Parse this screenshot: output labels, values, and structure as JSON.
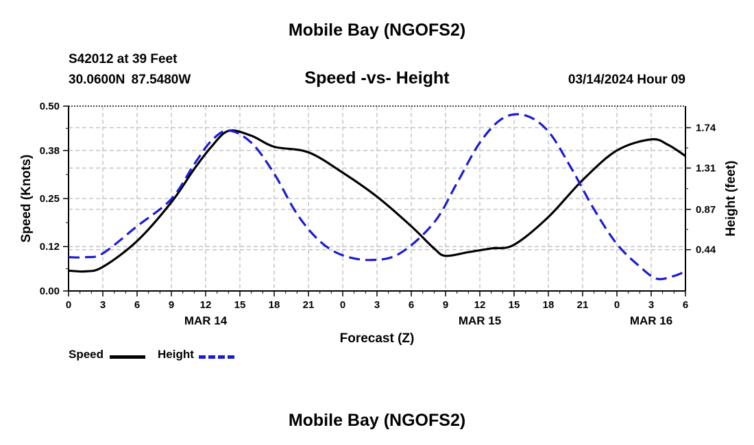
{
  "header": {
    "title": "Mobile Bay (NGOFS2)",
    "station": "S42012 at 39 Feet",
    "coordinates": "30.0600N  87.5480W",
    "subtitle": "Speed -vs- Height",
    "datetime": "03/14/2024 Hour 09"
  },
  "footer": {
    "title": "Mobile Bay (NGOFS2)"
  },
  "legend": {
    "speed_label": "Speed",
    "height_label": "Height",
    "speed_color": "#000000",
    "height_color": "#1a1ad6"
  },
  "chart_data": {
    "type": "line",
    "title": "Speed -vs- Height",
    "xlabel": "Forecast (Z)",
    "ylabel": "Speed (Knots)",
    "y2label": "Height (feet)",
    "xlim": [
      0,
      54
    ],
    "ylim": [
      0,
      0.5
    ],
    "y2lim": [
      0.0,
      1.97
    ],
    "x_ticks": [
      0,
      3,
      6,
      9,
      12,
      15,
      18,
      21,
      24,
      27,
      30,
      33,
      36,
      39,
      42,
      45,
      48,
      51,
      54
    ],
    "x_tick_labels": [
      "0",
      "3",
      "6",
      "9",
      "12",
      "15",
      "18",
      "21",
      "0",
      "3",
      "6",
      "9",
      "12",
      "15",
      "18",
      "21",
      "0",
      "3",
      "6"
    ],
    "date_labels": [
      {
        "hour": 12,
        "label": "MAR 14"
      },
      {
        "hour": 36,
        "label": "MAR 15"
      },
      {
        "hour": 51,
        "label": "MAR 16"
      }
    ],
    "y_ticks": [
      0.0,
      0.12,
      0.25,
      0.38,
      0.5
    ],
    "y_tick_labels": [
      "0.00",
      "0.12",
      "0.25",
      "0.38",
      "0.50"
    ],
    "y2_ticks": [
      0.44,
      0.87,
      1.31,
      1.74
    ],
    "y2_tick_labels": [
      "0.44",
      "0.87",
      "1.31",
      "1.74"
    ],
    "grid": true,
    "legend_position": "bottom-left",
    "series": [
      {
        "name": "Speed",
        "axis": "left",
        "color": "#000000",
        "style": "solid",
        "x": [
          0,
          1.5,
          3,
          6,
          9,
          11,
          12.5,
          14,
          16,
          18,
          21,
          24,
          27,
          30,
          32,
          33,
          35,
          37,
          39,
          42,
          45,
          48,
          51,
          52.5,
          54
        ],
        "y": [
          0.055,
          0.053,
          0.065,
          0.135,
          0.24,
          0.33,
          0.39,
          0.433,
          0.42,
          0.39,
          0.375,
          0.32,
          0.255,
          0.175,
          0.115,
          0.095,
          0.105,
          0.115,
          0.125,
          0.2,
          0.3,
          0.38,
          0.41,
          0.395,
          0.365
        ]
      },
      {
        "name": "Height",
        "axis": "right",
        "color": "#1a1ad6",
        "style": "dashed",
        "x": [
          0,
          1.5,
          3,
          6,
          9,
          11,
          12.5,
          14,
          16,
          18,
          20,
          22,
          24,
          26.5,
          29,
          32,
          34,
          36,
          38,
          40,
          42,
          44,
          46,
          48,
          50,
          51.5,
          53,
          54
        ],
        "y": [
          0.36,
          0.36,
          0.4,
          0.69,
          0.98,
          1.35,
          1.6,
          1.71,
          1.58,
          1.25,
          0.82,
          0.53,
          0.38,
          0.33,
          0.4,
          0.73,
          1.15,
          1.58,
          1.84,
          1.87,
          1.7,
          1.31,
          0.87,
          0.5,
          0.26,
          0.13,
          0.16,
          0.21
        ]
      }
    ]
  }
}
